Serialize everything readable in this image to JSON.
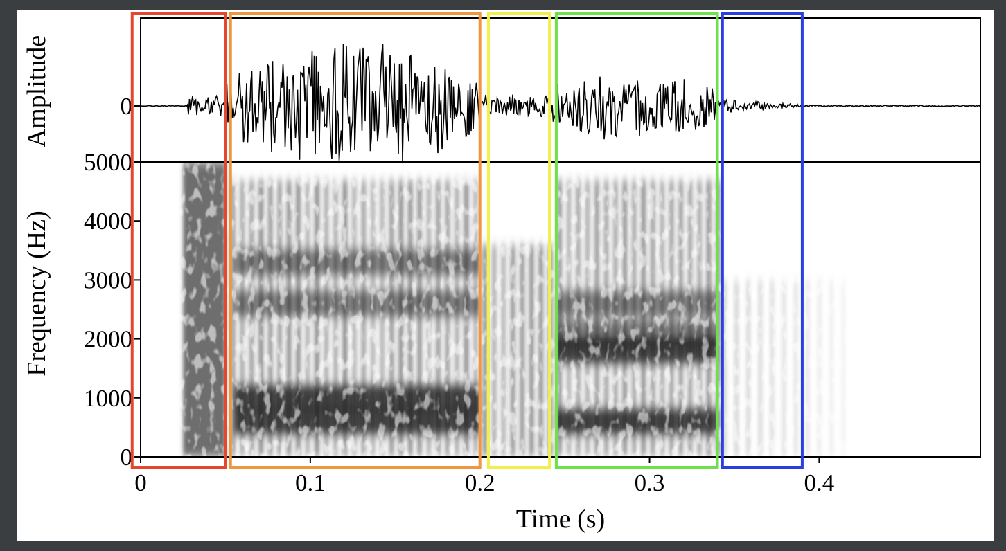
{
  "chart_data": {
    "type": "spectrogram",
    "waveform": {
      "ylabel": "Amplitude",
      "y_ticks": [
        0
      ]
    },
    "spectrogram": {
      "ylabel": "Frequency (Hz)",
      "ylim": [
        0,
        5000
      ],
      "y_ticks": [
        0,
        1000,
        2000,
        3000,
        4000,
        5000
      ],
      "formant_bands_hz": [
        {
          "from": 0.055,
          "to": 0.2,
          "bands": [
            600,
            1000,
            2600,
            3300
          ]
        },
        {
          "from": 0.245,
          "to": 0.34,
          "bands": [
            600,
            1800,
            2100,
            2600
          ]
        }
      ]
    },
    "xlabel": "Time (s)",
    "xlim": [
      0,
      0.495
    ],
    "x_ticks": [
      0,
      0.1,
      0.2,
      0.3,
      0.4
    ],
    "x_tick_labels": [
      "0",
      "0.1",
      "0.2",
      "0.3",
      "0.4"
    ],
    "segments": [
      {
        "start": -0.005,
        "end": 0.05,
        "color": "#e4472d"
      },
      {
        "start": 0.053,
        "end": 0.2,
        "color": "#f0963f"
      },
      {
        "start": 0.205,
        "end": 0.241,
        "color": "#f2ef4c"
      },
      {
        "start": 0.245,
        "end": 0.34,
        "color": "#6de04a"
      },
      {
        "start": 0.343,
        "end": 0.39,
        "color": "#2b3fe0"
      }
    ]
  }
}
